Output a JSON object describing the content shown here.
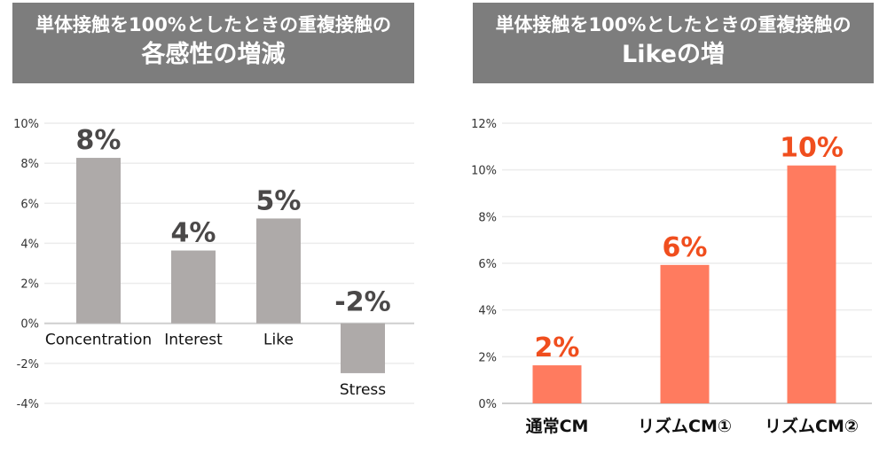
{
  "chart_data": [
    {
      "type": "bar",
      "title_line1": "単体接触を100%としたときの重複接触の",
      "title_line2": "各感性の増減",
      "categories": [
        "Concentration",
        "Interest",
        "Like",
        "Stress"
      ],
      "values": [
        8.27,
        3.64,
        5.24,
        -2.49
      ],
      "data_labels": [
        "8%",
        "4%",
        "5%",
        "-2%"
      ],
      "ylim": [
        -4,
        10
      ],
      "yticks": [
        -4,
        -2,
        0,
        2,
        4,
        6,
        8,
        10
      ],
      "ytick_labels": [
        "-4%",
        "-2%",
        "0%",
        "2%",
        "4%",
        "6%",
        "8%",
        "10%"
      ],
      "grid": true,
      "bar_color": "#aeaaa9",
      "label_color": "#4a4848"
    },
    {
      "type": "bar",
      "title_line1": "単体接触を100%としたときの重複接触の",
      "title_line2": "Likeの増",
      "categories": [
        "通常CM",
        "リズムCM①",
        "リズムCM②"
      ],
      "values": [
        1.63,
        5.93,
        10.19
      ],
      "data_labels": [
        "2%",
        "6%",
        "10%"
      ],
      "ylim": [
        0,
        12
      ],
      "yticks": [
        0,
        2,
        4,
        6,
        8,
        10,
        12
      ],
      "ytick_labels": [
        "0%",
        "2%",
        "4%",
        "6%",
        "8%",
        "10%",
        "12%"
      ],
      "grid": true,
      "bar_color": "#ff7b5f",
      "label_color": "#f04e1e"
    }
  ]
}
